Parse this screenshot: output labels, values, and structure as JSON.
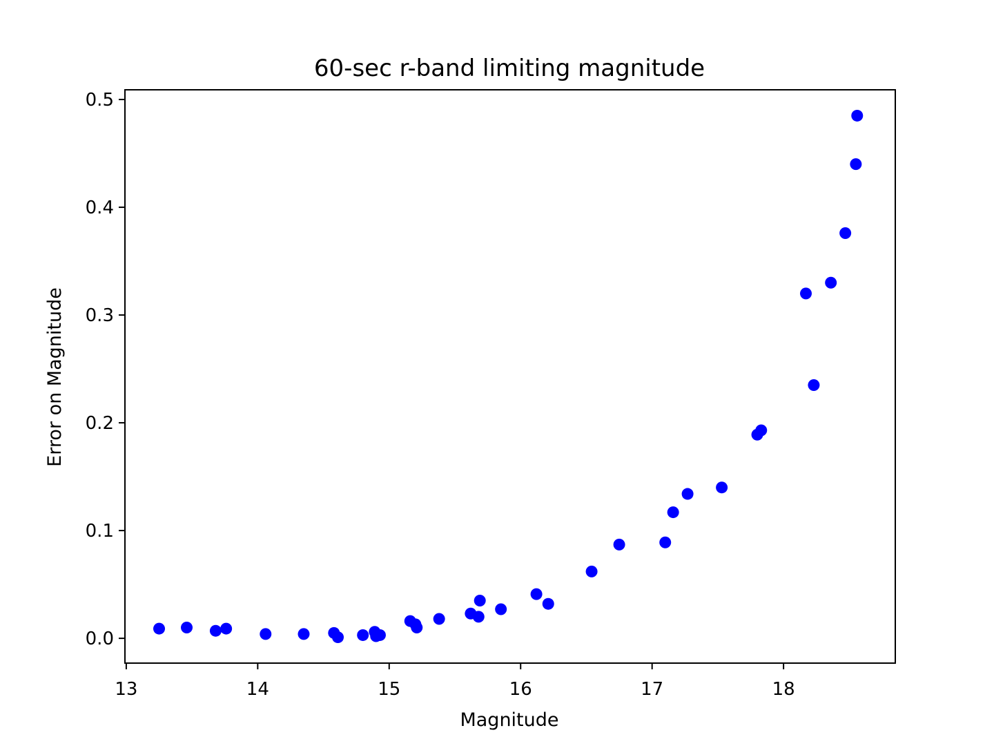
{
  "chart_data": {
    "type": "scatter",
    "title": "60-sec r-band limiting magnitude",
    "xlabel": "Magnitude",
    "ylabel": "Error on Magnitude",
    "xlim": [
      12.99,
      18.85
    ],
    "ylim": [
      -0.023,
      0.509
    ],
    "xticks": [
      13,
      14,
      15,
      16,
      17,
      18
    ],
    "yticks": [
      0.0,
      0.1,
      0.2,
      0.3,
      0.4,
      0.5
    ],
    "xtick_labels": [
      "13",
      "14",
      "15",
      "16",
      "17",
      "18"
    ],
    "ytick_labels": [
      "0.0",
      "0.1",
      "0.2",
      "0.3",
      "0.4",
      "0.5"
    ],
    "grid": false,
    "marker_color": "#0000ff",
    "points": [
      {
        "x": 13.25,
        "y": 0.009
      },
      {
        "x": 13.46,
        "y": 0.01
      },
      {
        "x": 13.68,
        "y": 0.007
      },
      {
        "x": 13.76,
        "y": 0.009
      },
      {
        "x": 14.06,
        "y": 0.004
      },
      {
        "x": 14.35,
        "y": 0.004
      },
      {
        "x": 14.58,
        "y": 0.005
      },
      {
        "x": 14.61,
        "y": 0.001
      },
      {
        "x": 14.8,
        "y": 0.003
      },
      {
        "x": 14.89,
        "y": 0.006
      },
      {
        "x": 14.9,
        "y": 0.002
      },
      {
        "x": 14.93,
        "y": 0.003
      },
      {
        "x": 15.16,
        "y": 0.016
      },
      {
        "x": 15.2,
        "y": 0.013
      },
      {
        "x": 15.21,
        "y": 0.01
      },
      {
        "x": 15.38,
        "y": 0.018
      },
      {
        "x": 15.62,
        "y": 0.023
      },
      {
        "x": 15.68,
        "y": 0.02
      },
      {
        "x": 15.69,
        "y": 0.035
      },
      {
        "x": 15.85,
        "y": 0.027
      },
      {
        "x": 16.12,
        "y": 0.041
      },
      {
        "x": 16.21,
        "y": 0.032
      },
      {
        "x": 16.54,
        "y": 0.062
      },
      {
        "x": 16.75,
        "y": 0.087
      },
      {
        "x": 17.1,
        "y": 0.089
      },
      {
        "x": 17.16,
        "y": 0.117
      },
      {
        "x": 17.27,
        "y": 0.134
      },
      {
        "x": 17.53,
        "y": 0.14
      },
      {
        "x": 17.8,
        "y": 0.189
      },
      {
        "x": 17.83,
        "y": 0.193
      },
      {
        "x": 18.17,
        "y": 0.32
      },
      {
        "x": 18.23,
        "y": 0.235
      },
      {
        "x": 18.36,
        "y": 0.33
      },
      {
        "x": 18.47,
        "y": 0.376
      },
      {
        "x": 18.55,
        "y": 0.44
      },
      {
        "x": 18.56,
        "y": 0.485
      }
    ]
  }
}
